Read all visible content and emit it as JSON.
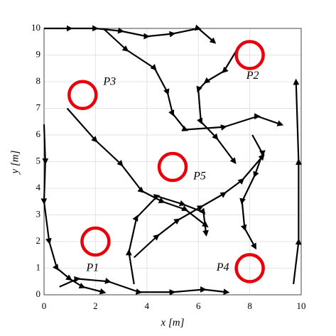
{
  "chart_data": {
    "type": "scatter",
    "xlabel": "x [m]",
    "ylabel": "y [m]",
    "xlim": [
      0,
      10
    ],
    "ylim": [
      0,
      10
    ],
    "xticks": [
      0,
      2,
      4,
      6,
      8,
      10
    ],
    "yticks": [
      0,
      1,
      2,
      3,
      4,
      5,
      6,
      7,
      8,
      9,
      10
    ],
    "grid": true,
    "targets": {
      "color": "#e8000b",
      "labels": [
        "P1",
        "P2",
        "P3",
        "P4",
        "P5"
      ],
      "x": [
        2,
        8,
        1.5,
        8,
        5
      ],
      "y": [
        2,
        9,
        7.5,
        1,
        4.8
      ]
    },
    "paths": {
      "color": "#000000",
      "series": [
        {
          "x": [
            0,
            1,
            2,
            3,
            4,
            5,
            6,
            6.6
          ],
          "y": [
            10,
            10,
            10,
            9.9,
            9.7,
            9.8,
            10,
            9.5
          ]
        },
        {
          "x": [
            2.3,
            3.2,
            4.3,
            4.8,
            5,
            5.5,
            7,
            8.3,
            9.2
          ],
          "y": [
            10,
            9.2,
            8.5,
            7.6,
            6.8,
            6.2,
            6.3,
            6.7,
            6.4
          ]
        },
        {
          "x": [
            0.9,
            2,
            3,
            3.8,
            4.6,
            5.5,
            6.3
          ],
          "y": [
            7,
            5.8,
            4.9,
            3.9,
            3.5,
            3.2,
            2.6
          ]
        },
        {
          "x": [
            0.6,
            1.3,
            2.5,
            3.7,
            5,
            6.2,
            7.1
          ],
          "y": [
            0.3,
            0.6,
            0.5,
            0.1,
            0.1,
            0.2,
            0.1
          ]
        },
        {
          "x": [
            0,
            0.05,
            0,
            0.2,
            0.5,
            1,
            1.5,
            2.3
          ],
          "y": [
            6.4,
            5,
            3.5,
            2,
            1,
            0.6,
            0.3,
            0.1
          ]
        },
        {
          "x": [
            9.7,
            9.9,
            9.9,
            9.8
          ],
          "y": [
            0.4,
            2,
            5,
            8
          ]
        },
        {
          "x": [
            3.5,
            3.3,
            3.6,
            4.4,
            5.4,
            6.2,
            6.3
          ],
          "y": [
            0.4,
            1.6,
            2.9,
            3.7,
            3.4,
            3.1,
            2.3
          ]
        },
        {
          "x": [
            3.5,
            4.4,
            5.2,
            6.1,
            7,
            7.7,
            8.5
          ],
          "y": [
            1.4,
            2.2,
            2.8,
            3.3,
            3.8,
            4.3,
            5.2
          ]
        },
        {
          "x": [
            7.5,
            7,
            6.3,
            6,
            6.1,
            6.7,
            7.4
          ],
          "y": [
            9.2,
            8.4,
            8,
            7.7,
            6.5,
            5.9,
            5
          ]
        },
        {
          "x": [
            8.1,
            8.5,
            8.2,
            7.7,
            7.8,
            8.2
          ],
          "y": [
            6,
            5.3,
            4.5,
            3.5,
            2.5,
            1.8
          ]
        }
      ]
    }
  }
}
